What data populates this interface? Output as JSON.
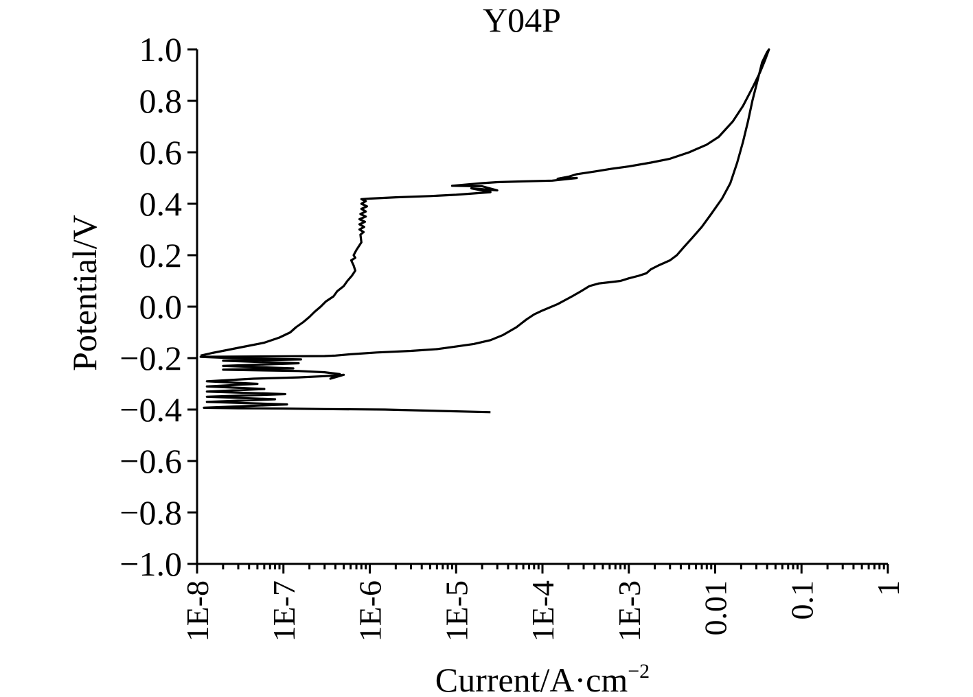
{
  "chart_data": {
    "type": "line",
    "title": "Y04P",
    "xlabel": "Current/A·cm",
    "xlabel_sup": "−2",
    "ylabel": "Potential/V",
    "x_scale": "log",
    "xlim": [
      1e-08,
      1
    ],
    "ylim": [
      -1.0,
      1.0
    ],
    "x_tick_values": [
      1e-08,
      1e-07,
      1e-06,
      1e-05,
      0.0001,
      0.001,
      0.01,
      0.1,
      1
    ],
    "x_tick_labels": [
      "1E-8",
      "1E-7",
      "1E-6",
      "1E-5",
      "1E-4",
      "1E-3",
      "0.01",
      "0.1",
      "1"
    ],
    "y_tick_values": [
      1.0,
      0.8,
      0.6,
      0.4,
      0.2,
      0.0,
      -0.2,
      -0.4,
      -0.6,
      -0.8,
      -1.0
    ],
    "y_tick_labels": [
      "1.0",
      "0.8",
      "0.6",
      "0.4",
      "0.2",
      "0.0",
      "−0.2",
      "−0.4",
      "−0.6",
      "−0.8",
      "−1.0"
    ],
    "grid": false,
    "line_color": "#000000",
    "series": [
      {
        "points": [
          [
            2.5e-05,
            -0.41
          ],
          [
            1.5e-06,
            -0.4
          ],
          [
            3e-07,
            -0.398
          ],
          [
            1e-07,
            -0.396
          ],
          [
            3e-08,
            -0.395
          ],
          [
            1.2e-08,
            -0.393
          ],
          [
            1.1e-07,
            -0.38
          ],
          [
            1.3e-08,
            -0.37
          ],
          [
            8e-08,
            -0.36
          ],
          [
            1.3e-08,
            -0.35
          ],
          [
            1.05e-07,
            -0.34
          ],
          [
            1.3e-08,
            -0.33
          ],
          [
            6e-08,
            -0.32
          ],
          [
            1.3e-08,
            -0.31
          ],
          [
            5e-08,
            -0.3
          ],
          [
            1.3e-08,
            -0.29
          ],
          [
            4.5e-08,
            -0.28
          ],
          [
            1.5e-07,
            -0.275
          ],
          [
            3e-07,
            -0.27
          ],
          [
            5e-07,
            -0.265
          ],
          [
            3.5e-07,
            -0.28
          ],
          [
            4.5e-07,
            -0.262
          ],
          [
            3e-07,
            -0.255
          ],
          [
            1.5e-07,
            -0.25
          ],
          [
            2e-08,
            -0.245
          ],
          [
            1.3e-07,
            -0.24
          ],
          [
            2e-08,
            -0.23
          ],
          [
            1.5e-07,
            -0.22
          ],
          [
            2e-08,
            -0.21
          ],
          [
            1.6e-07,
            -0.205
          ],
          [
            2.5e-08,
            -0.2
          ],
          [
            1.1e-08,
            -0.195
          ],
          [
            3e-07,
            -0.192
          ],
          [
            4e-07,
            -0.19
          ],
          [
            6e-07,
            -0.185
          ],
          [
            1.2e-06,
            -0.178
          ],
          [
            3e-06,
            -0.172
          ],
          [
            6e-06,
            -0.165
          ],
          [
            1e-05,
            -0.155
          ],
          [
            1.6e-05,
            -0.145
          ],
          [
            2.5e-05,
            -0.13
          ],
          [
            3.5e-05,
            -0.11
          ],
          [
            5e-05,
            -0.08
          ],
          [
            6.5e-05,
            -0.05
          ],
          [
            8e-05,
            -0.03
          ],
          [
            0.0001,
            -0.015
          ],
          [
            0.00015,
            0.01
          ],
          [
            0.00022,
            0.04
          ],
          [
            0.00028,
            0.06
          ],
          [
            0.00035,
            0.08
          ],
          [
            0.00045,
            0.09
          ],
          [
            0.0006,
            0.095
          ],
          [
            0.0008,
            0.1
          ],
          [
            0.001,
            0.11
          ],
          [
            0.0013,
            0.12
          ],
          [
            0.0016,
            0.13
          ],
          [
            0.0018,
            0.145
          ],
          [
            0.0022,
            0.16
          ],
          [
            0.003,
            0.18
          ],
          [
            0.0036,
            0.2
          ],
          [
            0.0043,
            0.23
          ],
          [
            0.0055,
            0.27
          ],
          [
            0.007,
            0.31
          ],
          [
            0.009,
            0.36
          ],
          [
            0.012,
            0.42
          ],
          [
            0.015,
            0.48
          ],
          [
            0.018,
            0.56
          ],
          [
            0.021,
            0.64
          ],
          [
            0.024,
            0.72
          ],
          [
            0.027,
            0.8
          ],
          [
            0.031,
            0.88
          ],
          [
            0.035,
            0.95
          ],
          [
            0.04,
            0.99
          ],
          [
            0.042,
            1.0
          ],
          [
            0.038,
            0.96
          ],
          [
            0.033,
            0.91
          ],
          [
            0.027,
            0.85
          ],
          [
            0.021,
            0.78
          ],
          [
            0.016,
            0.72
          ],
          [
            0.011,
            0.66
          ],
          [
            0.008,
            0.63
          ],
          [
            0.005,
            0.6
          ],
          [
            0.003,
            0.575
          ],
          [
            0.0018,
            0.56
          ],
          [
            0.001,
            0.545
          ],
          [
            0.0006,
            0.535
          ],
          [
            0.0004,
            0.525
          ],
          [
            0.00025,
            0.515
          ],
          [
            0.0002,
            0.505
          ],
          [
            0.00015,
            0.497
          ],
          [
            0.00025,
            0.5
          ],
          [
            0.00013,
            0.49
          ],
          [
            6e-05,
            0.487
          ],
          [
            3e-05,
            0.484
          ],
          [
            2e-05,
            0.48
          ],
          [
            9e-06,
            0.47
          ],
          [
            2e-05,
            0.468
          ],
          [
            3e-05,
            0.452
          ],
          [
            1.5e-05,
            0.46
          ],
          [
            2.5e-05,
            0.445
          ],
          [
            1e-05,
            0.435
          ],
          [
            5e-06,
            0.43
          ],
          [
            2e-06,
            0.425
          ],
          [
            1e-06,
            0.42
          ],
          [
            8e-07,
            0.418
          ],
          [
            9e-07,
            0.41
          ],
          [
            8e-07,
            0.4
          ],
          [
            9.3e-07,
            0.39
          ],
          [
            8e-07,
            0.38
          ],
          [
            9e-07,
            0.37
          ],
          [
            7.8e-07,
            0.36
          ],
          [
            9e-07,
            0.35
          ],
          [
            7.6e-07,
            0.34
          ],
          [
            8.8e-07,
            0.33
          ],
          [
            7.6e-07,
            0.32
          ],
          [
            8.6e-07,
            0.31
          ],
          [
            7.6e-07,
            0.3
          ],
          [
            8.5e-07,
            0.29
          ],
          [
            7.8e-07,
            0.28
          ],
          [
            8e-07,
            0.25
          ],
          [
            7e-07,
            0.22
          ],
          [
            6.5e-07,
            0.2
          ],
          [
            6.8e-07,
            0.19
          ],
          [
            6.1e-07,
            0.18
          ],
          [
            6.5e-07,
            0.16
          ],
          [
            6.8e-07,
            0.14
          ],
          [
            6.2e-07,
            0.12
          ],
          [
            5.5e-07,
            0.1
          ],
          [
            5e-07,
            0.08
          ],
          [
            4.2e-07,
            0.06
          ],
          [
            3.8e-07,
            0.04
          ],
          [
            3.1e-07,
            0.02
          ],
          [
            2.7e-07,
            0.0
          ],
          [
            2.3e-07,
            -0.02
          ],
          [
            2e-07,
            -0.04
          ],
          [
            1.7e-07,
            -0.06
          ],
          [
            1.4e-07,
            -0.08
          ],
          [
            1.2e-07,
            -0.1
          ],
          [
            9e-08,
            -0.12
          ],
          [
            6e-08,
            -0.14
          ],
          [
            3e-08,
            -0.16
          ],
          [
            1.5e-08,
            -0.18
          ],
          [
            1.1e-08,
            -0.19
          ]
        ]
      }
    ]
  }
}
